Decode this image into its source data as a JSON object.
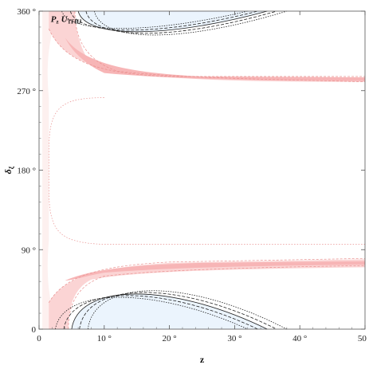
{
  "chart_data": {
    "type": "contour",
    "xlabel": "z",
    "ylabel": "δ",
    "ylabel_sub": "ξ",
    "xlim": [
      0,
      50
    ],
    "ylim": [
      0,
      360
    ],
    "x_ticks": [
      {
        "value": 0,
        "label": "0"
      },
      {
        "value": 10,
        "label": "10 °"
      },
      {
        "value": 20,
        "label": "20 °"
      },
      {
        "value": 30,
        "label": "30 °"
      },
      {
        "value": 40,
        "label": "40 °"
      },
      {
        "value": 50,
        "label": "50 °"
      }
    ],
    "y_ticks": [
      {
        "value": 0,
        "label": "0"
      },
      {
        "value": 90,
        "label": "90 °"
      },
      {
        "value": 180,
        "label": "180 °"
      },
      {
        "value": 270,
        "label": "270 °"
      },
      {
        "value": 360,
        "label": "360 °"
      }
    ],
    "annotation": {
      "main": "P",
      "main_sub": "z",
      "second": "U",
      "second_sub": "TFHJ"
    },
    "colors": {
      "very_light_pink": "#fdf0ef",
      "light_pink": "#fbd4d4",
      "pink": "#f7b5b6",
      "light_blue": "#ebf4fd",
      "dashed_red": "#e9908f",
      "contour_dark": "#222222"
    },
    "regions": {
      "outer_envelope": {
        "x_start": 0.5,
        "y_low": 22,
        "y_high": 262,
        "asymptote_x": 4
      },
      "lower_red_band": [
        {
          "x": 1.5,
          "y": 30
        },
        {
          "x": 5,
          "y": 62
        },
        {
          "x": 10,
          "y": 70
        },
        {
          "x": 20,
          "y": 73
        },
        {
          "x": 35,
          "y": 75
        },
        {
          "x": 50,
          "y": 76
        }
      ],
      "upper_red_band": [
        {
          "x": 1.5,
          "y": 340
        },
        {
          "x": 5,
          "y": 305
        },
        {
          "x": 10,
          "y": 290
        },
        {
          "x": 20,
          "y": 285
        },
        {
          "x": 35,
          "y": 284
        },
        {
          "x": 50,
          "y": 283
        }
      ],
      "lower_blue_lobe": {
        "x_start": 5,
        "x_peak": 14,
        "x_end": 35,
        "y_peak": 52
      },
      "upper_blue_lobe": {
        "x_start": 6,
        "x_trough": 13,
        "x_end": 35,
        "y_trough": 330
      }
    }
  }
}
